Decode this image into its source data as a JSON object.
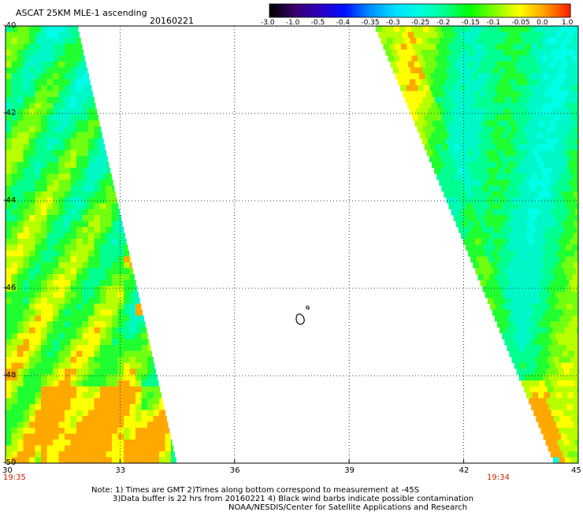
{
  "header": {
    "title": "ASCAT 25KM MLE-1 ascending",
    "date": "20160221"
  },
  "colorbar": {
    "labels": [
      "-3.0",
      "-1.0",
      "-0.5",
      "-0.4",
      "-0.35",
      "-0.3",
      "-0.25",
      "-0.2",
      "-0.15",
      "-0.1",
      "-0.05",
      "0.0",
      "1.0"
    ],
    "colors": [
      "#000000",
      "#3a0070",
      "#2a00c0",
      "#0010ff",
      "#0090ff",
      "#00e0ff",
      "#00ffe0",
      "#00ff90",
      "#00ff00",
      "#80ff00",
      "#ffff00",
      "#ffa000",
      "#ff2000"
    ]
  },
  "chart_data": {
    "type": "heatmap",
    "xlim": [
      30,
      45
    ],
    "ylim": [
      -50,
      -40
    ],
    "x_ticks": [
      "30",
      "33",
      "36",
      "39",
      "42",
      "45"
    ],
    "y_ticks": [
      "-40",
      "-42",
      "-44",
      "-46",
      "-48",
      "-50"
    ],
    "grid": true,
    "swaths": [
      {
        "name": "",
        "time": "19:35",
        "coverage": "west",
        "edge_lon_top": 31.9,
        "edge_lon_bottom": 34.5
      },
      {
        "name": "",
        "time": "19:34",
        "coverage": "east",
        "edge_lon_top": 39.7,
        "edge_lon_bottom": 44.4
      }
    ]
  },
  "times": {
    "left": "19:35",
    "right": "19:34"
  },
  "notes": {
    "line1": "Note: 1) Times are GMT 2)Times along bottom correspond to measurement at -45S",
    "line2": "3)Data buffer is 22 hrs from 20160221 4) Black wind barbs indicate possible contamination",
    "line3": "NOAA/NESDIS/Center for Satellite Applications and Research"
  }
}
